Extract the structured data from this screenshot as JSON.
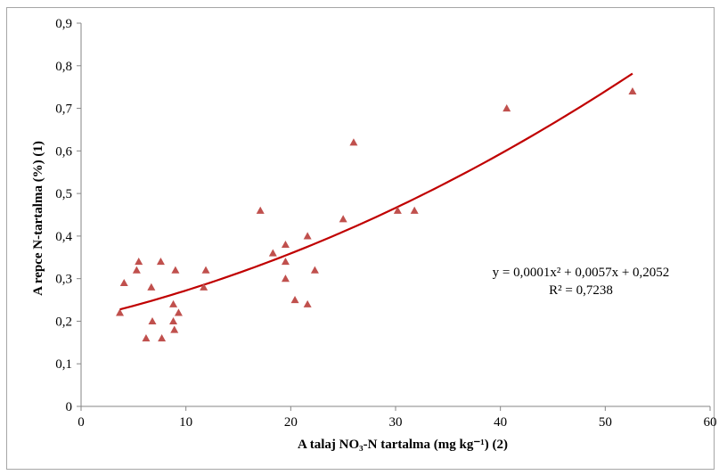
{
  "chart_data": {
    "type": "scatter",
    "xlabel": "A talaj NO₃-N tartalma (mg kg⁻¹) (2)",
    "ylabel": "A repce N-tartalma (%) (1)",
    "xlim": [
      0,
      60
    ],
    "ylim": [
      0,
      0.9
    ],
    "x_ticks": [
      "0",
      "10",
      "20",
      "30",
      "40",
      "50",
      "60"
    ],
    "y_ticks": [
      "0",
      "0,1",
      "0,2",
      "0,3",
      "0,4",
      "0,5",
      "0,6",
      "0,7",
      "0,8",
      "0,9"
    ],
    "grid": false,
    "marker": "triangle",
    "marker_color": "#c0504d",
    "trendline_color": "#c00000",
    "points": [
      {
        "x": 3.7,
        "y": 0.22
      },
      {
        "x": 4.1,
        "y": 0.29
      },
      {
        "x": 5.3,
        "y": 0.32
      },
      {
        "x": 5.5,
        "y": 0.34
      },
      {
        "x": 6.2,
        "y": 0.16
      },
      {
        "x": 6.7,
        "y": 0.28
      },
      {
        "x": 6.8,
        "y": 0.2
      },
      {
        "x": 7.6,
        "y": 0.34
      },
      {
        "x": 7.7,
        "y": 0.16
      },
      {
        "x": 8.8,
        "y": 0.24
      },
      {
        "x": 8.8,
        "y": 0.2
      },
      {
        "x": 8.9,
        "y": 0.18
      },
      {
        "x": 9.0,
        "y": 0.32
      },
      {
        "x": 9.3,
        "y": 0.22
      },
      {
        "x": 11.7,
        "y": 0.28
      },
      {
        "x": 11.9,
        "y": 0.32
      },
      {
        "x": 17.1,
        "y": 0.46
      },
      {
        "x": 18.3,
        "y": 0.36
      },
      {
        "x": 19.5,
        "y": 0.38
      },
      {
        "x": 19.5,
        "y": 0.34
      },
      {
        "x": 19.5,
        "y": 0.3
      },
      {
        "x": 20.4,
        "y": 0.25
      },
      {
        "x": 21.6,
        "y": 0.4
      },
      {
        "x": 21.6,
        "y": 0.24
      },
      {
        "x": 22.3,
        "y": 0.32
      },
      {
        "x": 25.0,
        "y": 0.44
      },
      {
        "x": 26.0,
        "y": 0.62
      },
      {
        "x": 30.2,
        "y": 0.46
      },
      {
        "x": 31.8,
        "y": 0.46
      },
      {
        "x": 40.6,
        "y": 0.7
      },
      {
        "x": 52.6,
        "y": 0.74
      }
    ],
    "trendline": {
      "type": "polynomial",
      "a": 0.0001,
      "b": 0.0057,
      "c": 0.2052,
      "x_range": [
        3.7,
        52.6
      ]
    },
    "annotations": {
      "equation": "y = 0,0001x² + 0,0057x + 0,2052",
      "r_squared": "R² = 0,7238"
    }
  }
}
